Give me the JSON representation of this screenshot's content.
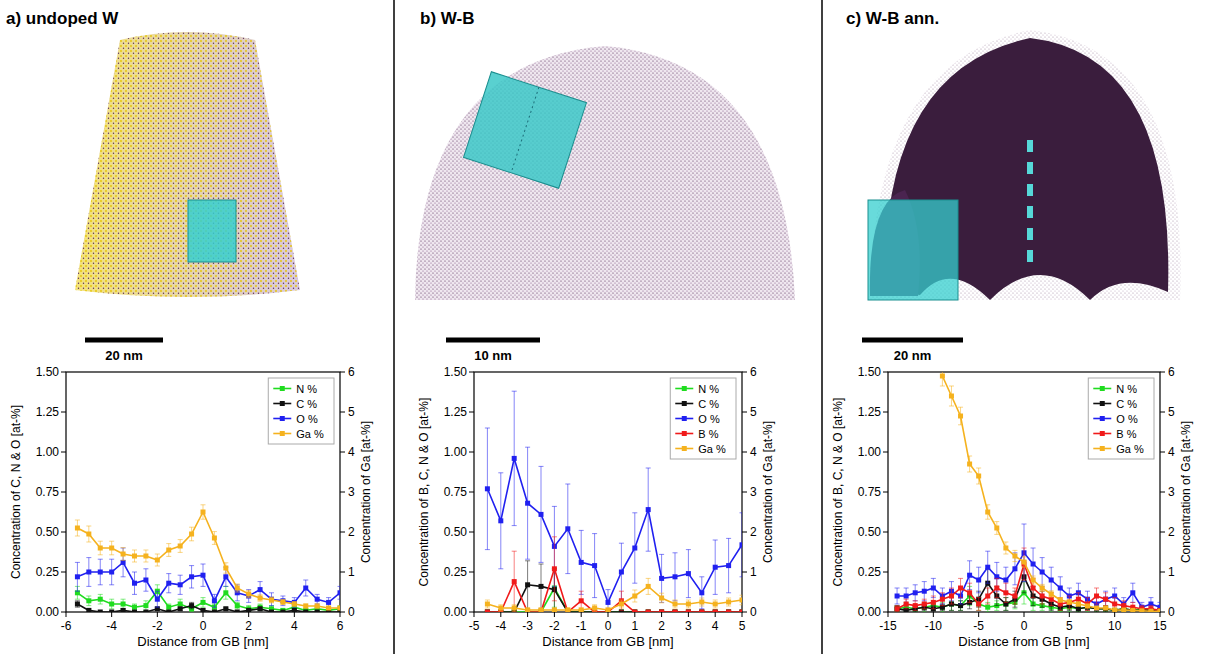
{
  "chart_data": [
    {
      "type": "line",
      "title": "a) undoped W",
      "annotations": [
        "20 nm"
      ],
      "x_label": "Distance from GB [nm]",
      "y_label": "Concentration of C, N & O [at-%]",
      "y2_label": "Concentration of Ga [at-%]",
      "x": [
        -5.5,
        -5,
        -4.5,
        -4,
        -3.5,
        -3,
        -2.5,
        -2,
        -1.5,
        -1,
        -0.5,
        0,
        0.5,
        1,
        1.5,
        2,
        2.5,
        3,
        3.5,
        4,
        4.5,
        5,
        5.5,
        6
      ],
      "xlim": [
        -6,
        6
      ],
      "xticks": [
        -6,
        -4,
        -2,
        0,
        2,
        4,
        6
      ],
      "ylim": [
        0,
        1.5
      ],
      "yticks": [
        {
          "value": 0,
          "label": "0.00"
        },
        {
          "value": 0.25,
          "label": "0.25"
        },
        {
          "value": 0.5,
          "label": "0.50"
        },
        {
          "value": 0.75,
          "label": "0.75"
        },
        {
          "value": 1,
          "label": "1.00"
        },
        {
          "value": 1.25,
          "label": "1.25"
        },
        {
          "value": 1.5,
          "label": "1.50"
        }
      ],
      "y2lim": [
        0,
        6
      ],
      "y2ticks": [
        0,
        1,
        2,
        3,
        4,
        5,
        6
      ],
      "grid": false,
      "legend": "upper right",
      "marker": "square",
      "series": [
        {
          "name": "N %",
          "color": "#1fdc1f",
          "values": [
            0.12,
            0.07,
            0.08,
            0.05,
            0.05,
            0.03,
            0.04,
            0.13,
            0.03,
            0.05,
            0.02,
            0.06,
            0.03,
            0.12,
            0.04,
            0.02,
            0.03,
            0.02,
            0.01,
            0.03,
            0.01,
            0.02,
            0.01,
            0.02
          ],
          "errors": [
            0.04,
            0.03,
            0.03,
            0.03,
            0.03,
            0.02,
            0.03,
            0.04,
            0.02,
            0.03,
            0.02,
            0.03,
            0.02,
            0.04,
            0.02,
            0.02,
            0.02,
            0.02,
            0.01,
            0.02,
            0.01,
            0.02,
            0.01,
            0.02
          ]
        },
        {
          "name": "C %",
          "color": "#111111",
          "values": [
            0.05,
            0.01,
            0,
            0,
            0.01,
            0,
            0,
            0.02,
            0,
            0.02,
            0.04,
            0.01,
            0,
            0.02,
            0,
            0.01,
            0.02,
            0,
            0,
            0.01,
            0,
            0,
            0,
            0
          ],
          "errors": [
            0.02,
            0.01,
            0,
            0,
            0.01,
            0,
            0,
            0.01,
            0,
            0.01,
            0.02,
            0.01,
            0,
            0.01,
            0,
            0.01,
            0.01,
            0,
            0,
            0.01,
            0,
            0,
            0,
            0
          ]
        },
        {
          "name": "O %",
          "color": "#2020f0",
          "values": [
            0.22,
            0.25,
            0.25,
            0.25,
            0.31,
            0.18,
            0.2,
            0.08,
            0.18,
            0.17,
            0.22,
            0.23,
            0.07,
            0.22,
            0.12,
            0.1,
            0.14,
            0.08,
            0.07,
            0.06,
            0.15,
            0.08,
            0.06,
            0.12
          ],
          "errors": [
            0.09,
            0.09,
            0.08,
            0.08,
            0.09,
            0.07,
            0.07,
            0.05,
            0.06,
            0.06,
            0.07,
            0.07,
            0.04,
            0.06,
            0.05,
            0.04,
            0.05,
            0.04,
            0.03,
            0.03,
            0.05,
            0.03,
            0.03,
            0.04
          ]
        },
        {
          "name": "Ga %",
          "color": "#f5b21e",
          "axis": "y2",
          "values": [
            2.1,
            1.95,
            1.6,
            1.6,
            1.45,
            1.4,
            1.4,
            1.3,
            1.55,
            1.65,
            1.95,
            2.5,
            1.85,
            1.1,
            0.6,
            0.45,
            0.35,
            0.3,
            0.25,
            0.2,
            0.15,
            0.15,
            0.1,
            0.1
          ],
          "errors": [
            0.2,
            0.2,
            0.17,
            0.17,
            0.16,
            0.15,
            0.15,
            0.15,
            0.16,
            0.16,
            0.17,
            0.18,
            0.16,
            0.13,
            0.1,
            0.09,
            0.08,
            0.07,
            0.06,
            0.06,
            0.05,
            0.05,
            0.04,
            0.04
          ]
        }
      ]
    },
    {
      "type": "line",
      "title": "b) W-B",
      "annotations": [
        "10 nm"
      ],
      "x_label": "Distance from GB [nm]",
      "y_label": "Concentration of B, C, N & O [at-%]",
      "y2_label": "Concentration of Ga [at-%]",
      "x": [
        -4.5,
        -4,
        -3.5,
        -3,
        -2.5,
        -2,
        -1.5,
        -1,
        -0.5,
        0,
        0.5,
        1,
        1.5,
        2,
        2.5,
        3,
        3.5,
        4,
        4.5,
        5
      ],
      "xlim": [
        -5,
        5
      ],
      "xticks": [
        -5,
        -4,
        -3,
        -2,
        -1,
        0,
        1,
        2,
        3,
        4,
        5
      ],
      "ylim": [
        0,
        1.5
      ],
      "yticks": [
        {
          "value": 0,
          "label": "0.00"
        },
        {
          "value": 0.25,
          "label": "0.25"
        },
        {
          "value": 0.5,
          "label": "0.50"
        },
        {
          "value": 0.75,
          "label": "0.75"
        },
        {
          "value": 1,
          "label": "1.00"
        },
        {
          "value": 1.25,
          "label": "1.25"
        },
        {
          "value": 1.5,
          "label": "1.50"
        }
      ],
      "y2lim": [
        0,
        6
      ],
      "y2ticks": [
        0,
        1,
        2,
        3,
        4,
        5,
        6
      ],
      "grid": false,
      "legend": "upper right",
      "marker": "square",
      "series": [
        {
          "name": "N %",
          "color": "#1fdc1f",
          "values": [
            0,
            0,
            0,
            0,
            0,
            0.15,
            0,
            0,
            0,
            0,
            0,
            0,
            0,
            0,
            0,
            0,
            0,
            0,
            0,
            0
          ],
          "errors": [
            0,
            0,
            0,
            0,
            0,
            0.12,
            0,
            0,
            0,
            0,
            0,
            0,
            0,
            0,
            0,
            0,
            0,
            0,
            0,
            0
          ]
        },
        {
          "name": "C %",
          "color": "#111111",
          "values": [
            0,
            0,
            0,
            0.17,
            0.16,
            0.14,
            0,
            0,
            0,
            0,
            0,
            0,
            0,
            0,
            0,
            0,
            0,
            0,
            0,
            0
          ],
          "errors": [
            0,
            0,
            0,
            0.15,
            0.14,
            0.13,
            0,
            0,
            0,
            0,
            0,
            0,
            0,
            0,
            0,
            0,
            0,
            0,
            0,
            0
          ]
        },
        {
          "name": "O %",
          "color": "#2020f0",
          "values": [
            0.77,
            0.57,
            0.96,
            0.68,
            0.61,
            0.41,
            0.52,
            0.31,
            0.29,
            0.06,
            0.25,
            0.4,
            0.64,
            0.21,
            0.22,
            0.24,
            0.12,
            0.28,
            0.29,
            0.42
          ],
          "errors": [
            0.38,
            0.3,
            0.42,
            0.35,
            0.3,
            0.25,
            0.28,
            0.2,
            0.2,
            0.08,
            0.18,
            0.22,
            0.26,
            0.15,
            0.15,
            0.15,
            0.1,
            0.17,
            0.17,
            0.2
          ]
        },
        {
          "name": "B %",
          "color": "#f01a1a",
          "values": [
            0,
            0,
            0.19,
            0,
            0,
            0.27,
            0,
            0.07,
            0,
            0,
            0.07,
            0,
            0,
            0,
            0,
            0,
            0,
            0,
            0,
            0
          ],
          "errors": [
            0,
            0,
            0.19,
            0,
            0,
            0.2,
            0,
            0.06,
            0,
            0,
            0.06,
            0,
            0,
            0,
            0,
            0,
            0,
            0,
            0,
            0
          ]
        },
        {
          "name": "Ga %",
          "color": "#f5b21e",
          "axis": "y2",
          "values": [
            0.2,
            0.1,
            0.1,
            0.05,
            0.05,
            0.05,
            0.05,
            0.05,
            0.1,
            0.05,
            0.2,
            0.4,
            0.64,
            0.35,
            0.2,
            0.2,
            0.25,
            0.2,
            0.25,
            0.3
          ],
          "errors": [
            0.1,
            0.08,
            0.08,
            0.05,
            0.05,
            0.05,
            0.05,
            0.05,
            0.08,
            0.05,
            0.1,
            0.15,
            0.2,
            0.12,
            0.1,
            0.1,
            0.1,
            0.1,
            0.1,
            0.12
          ]
        }
      ]
    },
    {
      "type": "line",
      "title": "c) W-B ann.",
      "annotations": [
        "20 nm"
      ],
      "x_label": "Distance from GB [nm]",
      "y_label": "Concentration of B, C, N & O [at-%]",
      "y2_label": "Concentration of Ga [at-%]",
      "x": [
        -14,
        -13,
        -12,
        -11,
        -10,
        -9,
        -8,
        -7,
        -6,
        -5,
        -4,
        -3,
        -2,
        -1,
        0,
        1,
        2,
        3,
        4,
        5,
        6,
        7,
        8,
        9,
        10,
        11,
        12,
        13,
        14,
        15
      ],
      "xlim": [
        -15,
        15
      ],
      "xticks": [
        -15,
        -10,
        -5,
        0,
        5,
        10,
        15
      ],
      "ylim": [
        0,
        1.5
      ],
      "yticks": [
        {
          "value": 0,
          "label": "0.00"
        },
        {
          "value": 0.25,
          "label": "0.25"
        },
        {
          "value": 0.5,
          "label": "0.50"
        },
        {
          "value": 0.75,
          "label": "0.75"
        },
        {
          "value": 1,
          "label": "1.00"
        },
        {
          "value": 1.25,
          "label": "1.25"
        },
        {
          "value": 1.5,
          "label": "1.50"
        }
      ],
      "y2lim": [
        0,
        6
      ],
      "y2ticks": [
        0,
        1,
        2,
        3,
        4,
        5,
        6
      ],
      "grid": false,
      "legend": "upper right",
      "marker": "square",
      "series": [
        {
          "name": "N %",
          "color": "#1fdc1f",
          "values": [
            0.02,
            0.03,
            0.02,
            0.03,
            0.04,
            0.03,
            0.05,
            0.04,
            0.1,
            0.05,
            0.03,
            0.04,
            0.05,
            0.06,
            0.12,
            0.05,
            0.04,
            0.03,
            0.02,
            0.03,
            0.02,
            0.03,
            0.02,
            0.02,
            0.01,
            0.02,
            0.01,
            0.02,
            0.01,
            0.01
          ],
          "errors": [
            0.02,
            0.03,
            0.02,
            0.03,
            0.03,
            0.03,
            0.04,
            0.03,
            0.06,
            0.04,
            0.03,
            0.03,
            0.04,
            0.04,
            0.07,
            0.04,
            0.03,
            0.03,
            0.02,
            0.03,
            0.02,
            0.03,
            0.02,
            0.02,
            0.01,
            0.02,
            0.01,
            0.02,
            0.01,
            0.01
          ]
        },
        {
          "name": "C %",
          "color": "#111111",
          "values": [
            0.02,
            0.01,
            0.02,
            0.03,
            0.02,
            0.03,
            0.05,
            0.04,
            0.06,
            0.08,
            0.18,
            0.1,
            0.05,
            0.08,
            0.22,
            0.1,
            0.08,
            0.05,
            0.03,
            0.04,
            0.02,
            0.03,
            0.02,
            0.02,
            0.01,
            0.02,
            0.01,
            0.01,
            0.01,
            0.01
          ],
          "errors": [
            0.02,
            0.01,
            0.02,
            0.02,
            0.02,
            0.02,
            0.04,
            0.03,
            0.04,
            0.05,
            0.09,
            0.06,
            0.04,
            0.05,
            0.1,
            0.06,
            0.05,
            0.04,
            0.02,
            0.03,
            0.02,
            0.02,
            0.02,
            0.02,
            0.01,
            0.02,
            0.01,
            0.01,
            0.01,
            0.01
          ]
        },
        {
          "name": "O %",
          "color": "#2020f0",
          "values": [
            0.1,
            0.1,
            0.12,
            0.13,
            0.15,
            0.1,
            0.13,
            0.1,
            0.23,
            0.2,
            0.28,
            0.22,
            0.2,
            0.27,
            0.37,
            0.3,
            0.25,
            0.2,
            0.15,
            0.1,
            0.12,
            0.08,
            0.05,
            0.08,
            0.1,
            0.05,
            0.12,
            0.03,
            0.05,
            0.03
          ],
          "errors": [
            0.05,
            0.05,
            0.05,
            0.06,
            0.06,
            0.05,
            0.06,
            0.05,
            0.09,
            0.08,
            0.1,
            0.09,
            0.08,
            0.1,
            0.18,
            0.1,
            0.09,
            0.08,
            0.07,
            0.05,
            0.06,
            0.05,
            0.04,
            0.05,
            0.05,
            0.04,
            0.06,
            0.03,
            0.04,
            0.03
          ]
        },
        {
          "name": "B %",
          "color": "#f01a1a",
          "values": [
            0.02,
            0.05,
            0.04,
            0.05,
            0.06,
            0.08,
            0.1,
            0.15,
            0.12,
            0.05,
            0.1,
            0.15,
            0.12,
            0.1,
            0.3,
            0.15,
            0.1,
            0.08,
            0.05,
            0.06,
            0.08,
            0.05,
            0.1,
            0.08,
            0.05,
            0.04,
            0.03,
            0.02,
            0.02,
            0.01
          ],
          "errors": [
            0.02,
            0.03,
            0.03,
            0.03,
            0.04,
            0.04,
            0.05,
            0.06,
            0.06,
            0.04,
            0.05,
            0.06,
            0.06,
            0.05,
            0.1,
            0.06,
            0.05,
            0.04,
            0.04,
            0.04,
            0.04,
            0.04,
            0.05,
            0.04,
            0.04,
            0.03,
            0.03,
            0.02,
            0.02,
            0.01
          ]
        },
        {
          "name": "Ga %",
          "color": "#f5b21e",
          "axis": "y2",
          "values": [
            null,
            null,
            null,
            null,
            null,
            5.9,
            5.4,
            4.9,
            3.7,
            3.4,
            2.5,
            2.1,
            1.6,
            1.4,
            1.25,
            0.8,
            0.6,
            0.45,
            0.3,
            0.25,
            0.2,
            0.15,
            0.1,
            0.1,
            0.05,
            0.05,
            0.04,
            0.03,
            0.02,
            0.02
          ],
          "errors": [
            null,
            null,
            null,
            null,
            null,
            0.25,
            0.25,
            0.22,
            0.2,
            0.2,
            0.18,
            0.16,
            0.15,
            0.14,
            0.13,
            0.1,
            0.09,
            0.08,
            0.06,
            0.05,
            0.05,
            0.04,
            0.03,
            0.03,
            0.02,
            0.02,
            0.02,
            0.02,
            0.01,
            0.01
          ]
        }
      ]
    }
  ]
}
